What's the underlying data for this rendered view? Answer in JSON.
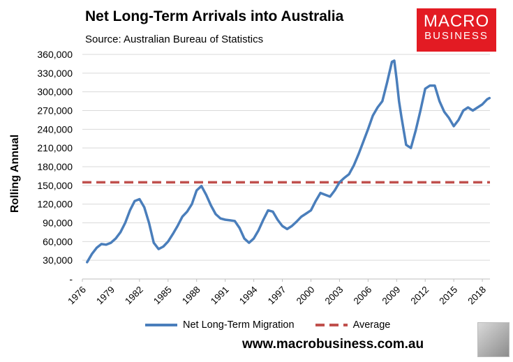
{
  "header": {
    "title": "Net Long-Term Arrivals into Australia",
    "subtitle": "Source: Australian Bureau of Statistics"
  },
  "logo": {
    "line1": "MACRO",
    "line2": "BUSINESS",
    "color": "#e31b23"
  },
  "footer": {
    "website": "www.macrobusiness.com.au"
  },
  "chart_data": {
    "type": "line",
    "title": "Net Long-Term Arrivals into Australia",
    "subtitle": "Source: Australian Bureau of Statistics",
    "xlabel": "",
    "ylabel": "Rolling Annual",
    "ylim": [
      0,
      360000
    ],
    "xlim": [
      1976,
      2018.8
    ],
    "y_ticks": [
      0,
      30000,
      60000,
      90000,
      120000,
      150000,
      180000,
      210000,
      240000,
      270000,
      300000,
      330000,
      360000
    ],
    "y_tick_labels": [
      "-",
      "30,000",
      "60,000",
      "90,000",
      "120,000",
      "150,000",
      "180,000",
      "210,000",
      "240,000",
      "270,000",
      "300,000",
      "330,000",
      "360,000"
    ],
    "x_tick_labels": [
      "1976",
      "1979",
      "1982",
      "1985",
      "1988",
      "1991",
      "1994",
      "1997",
      "2000",
      "2003",
      "2006",
      "2009",
      "2012",
      "2015",
      "2018"
    ],
    "legend_position": "bottom",
    "series": [
      {
        "name": "Net Long-Term Migration",
        "color": "#4a7ebb",
        "style": "solid",
        "x": [
          1976.5,
          1977,
          1977.5,
          1978,
          1978.5,
          1979,
          1979.5,
          1980,
          1980.5,
          1981,
          1981.5,
          1982,
          1982.5,
          1983,
          1983.5,
          1984,
          1984.5,
          1985,
          1985.5,
          1986,
          1986.5,
          1987,
          1987.5,
          1988,
          1988.5,
          1989,
          1989.5,
          1990,
          1990.5,
          1991,
          1991.5,
          1992,
          1992.5,
          1993,
          1993.5,
          1994,
          1994.5,
          1995,
          1995.5,
          1996,
          1996.5,
          1997,
          1997.5,
          1998,
          1998.5,
          1999,
          1999.5,
          2000,
          2000.5,
          2001,
          2001.5,
          2002,
          2002.5,
          2003,
          2003.5,
          2004,
          2004.5,
          2005,
          2005.5,
          2006,
          2006.5,
          2007,
          2007.5,
          2008,
          2008.5,
          2008.75,
          2009,
          2009.25,
          2009.5,
          2010,
          2010.5,
          2011,
          2011.5,
          2012,
          2012.5,
          2013,
          2013.5,
          2014,
          2014.5,
          2015,
          2015.5,
          2016,
          2016.5,
          2017,
          2017.5,
          2018,
          2018.5,
          2018.75
        ],
        "values": [
          27000,
          40000,
          50000,
          56000,
          55000,
          58000,
          65000,
          75000,
          90000,
          110000,
          125000,
          128000,
          115000,
          90000,
          58000,
          48000,
          52000,
          60000,
          72000,
          85000,
          100000,
          108000,
          120000,
          142000,
          149000,
          135000,
          118000,
          104000,
          97000,
          95000,
          94000,
          93000,
          82000,
          65000,
          58000,
          65000,
          78000,
          95000,
          110000,
          108000,
          95000,
          85000,
          80000,
          85000,
          92000,
          100000,
          105000,
          110000,
          125000,
          138000,
          135000,
          132000,
          142000,
          155000,
          162000,
          168000,
          182000,
          200000,
          220000,
          240000,
          262000,
          275000,
          285000,
          315000,
          348000,
          350000,
          320000,
          285000,
          260000,
          215000,
          210000,
          238000,
          270000,
          305000,
          310000,
          310000,
          285000,
          268000,
          258000,
          245000,
          255000,
          270000,
          275000,
          270000,
          275000,
          280000,
          288000,
          290000
        ]
      },
      {
        "name": "Average",
        "color": "#c0504d",
        "style": "dashed",
        "x": [
          1976,
          2018.8
        ],
        "values": [
          155000,
          155000
        ]
      }
    ]
  }
}
